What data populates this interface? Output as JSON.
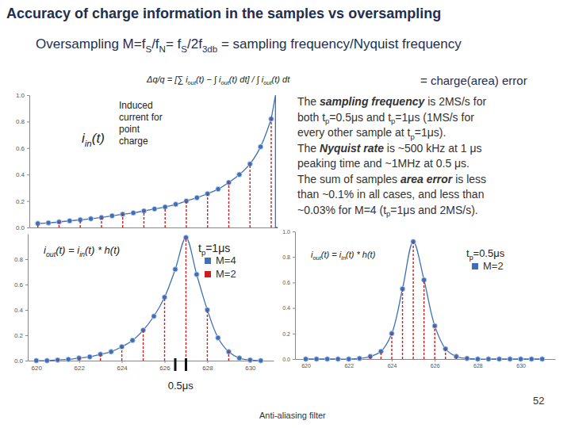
{
  "title": "Accuracy of charge information in the samples vs oversampling",
  "subtitle": [
    "Oversampling M=f",
    {
      "sub": "S"
    },
    "/f",
    {
      "sub": "N"
    },
    "= f",
    {
      "sub": "S"
    },
    "/2f",
    {
      "sub": "3db"
    },
    " = sampling frequency/Nyquist frequency"
  ],
  "formula": [
    "Δq/q = [∑ i",
    {
      "sub": "out"
    },
    "(t) − ∫ i",
    {
      "sub": "out"
    },
    "(t) dt] / ∫ i",
    {
      "sub": "out"
    },
    "(t) dt"
  ],
  "formula_note": "= charge(area) error",
  "notes": [
    [
      "The ",
      {
        "em": "sampling frequency"
      },
      " is 2MS/s for"
    ],
    [
      "both t",
      {
        "sub": "p"
      },
      "=0.5μs and t",
      {
        "sub": "p"
      },
      "=1μs  (1MS/s for"
    ],
    [
      "every other sample at t",
      {
        "sub": "p"
      },
      "=1μs)."
    ],
    [
      "The ",
      {
        "em": "Nyquist rate"
      },
      " is ~500 kHz at 1 μs"
    ],
    "peaking time and ~1MHz at 0.5 μs.",
    [
      "The sum of samples ",
      {
        "em": "area error"
      },
      " is less"
    ],
    "than ~0.1% in all cases, and less than",
    [
      "~0.03% for M=4 (t",
      {
        "sub": "p"
      },
      "=1μs and 2MS/s)."
    ]
  ],
  "page_number": "52",
  "footer": "Anti-aliasing filter",
  "chart_data": [
    {
      "type": "line",
      "xlim": [
        619.6,
        631.3
      ],
      "ylim": [
        0,
        1.0
      ],
      "yticks": [
        {
          "value": 0,
          "label": "0.0"
        },
        0.2,
        0.4,
        0.6,
        0.8,
        {
          "value": 1,
          "label": "1.0"
        }
      ],
      "tick_labels": "y",
      "annotations": [
        {
          "text": [
            "i",
            {
              "sub": "in"
            },
            "(t)"
          ]
        },
        {
          "text": "Induced"
        },
        {
          "text": "current for"
        },
        {
          "text": "point"
        },
        {
          "text": "charge"
        }
      ],
      "series": [
        {
          "type": "line",
          "marker": "circle",
          "color": "#3f6fb5",
          "x": [
            620,
            620.5,
            621,
            621.5,
            622,
            622.5,
            623,
            623.5,
            624,
            624.5,
            625,
            625.5,
            626,
            626.5,
            627,
            627.5,
            628,
            628.5,
            629,
            629.5,
            630,
            630.5,
            631
          ],
          "values": [
            0.03,
            0.035,
            0.042,
            0.05,
            0.058,
            0.066,
            0.075,
            0.088,
            0.1,
            0.11,
            0.125,
            0.14,
            0.155,
            0.175,
            0.2,
            0.225,
            0.255,
            0.29,
            0.34,
            0.4,
            0.48,
            0.61,
            0.82
          ]
        },
        {
          "type": "line",
          "color": "#3f6fb5",
          "x": [
            631,
            631.2,
            631.2,
            631.3
          ],
          "values": [
            0.82,
            1.0,
            0,
            0
          ]
        },
        {
          "type": "stem",
          "line_style": "dashed",
          "color": "#cc1f1f",
          "x": [
            620,
            621,
            622,
            623,
            624,
            625,
            626,
            627,
            628,
            629,
            630,
            631
          ],
          "values": [
            0.03,
            0.042,
            0.058,
            0.075,
            0.1,
            0.125,
            0.155,
            0.2,
            0.255,
            0.34,
            0.48,
            0.82
          ]
        }
      ]
    },
    {
      "type": "line",
      "xlim": [
        619.6,
        631.1
      ],
      "ylim": [
        0,
        1.0
      ],
      "xticks": [
        620,
        622,
        624,
        626,
        628,
        630
      ],
      "yticks": [
        {
          "value": 0,
          "label": "0.0"
        },
        0.2,
        0.4,
        0.6,
        0.8
      ],
      "legend": "upper right",
      "annotations": [
        {
          "text": [
            "i",
            {
              "sub": "out"
            },
            "(t) = i",
            {
              "sub": "in"
            },
            "(t) * h(t)"
          ]
        },
        {
          "text": [
            "t",
            {
              "sub": "p"
            },
            "=1μs"
          ]
        },
        {
          "text": "0.5μs",
          "x": [
            626.5,
            627
          ]
        }
      ],
      "series": [
        {
          "name": "M=4",
          "type": "line",
          "marker": "circle",
          "color": "#3f6fb5",
          "x": [
            620,
            620.5,
            621,
            621.5,
            622,
            622.5,
            623,
            623.5,
            624,
            624.5,
            625,
            625.5,
            626,
            626.5,
            627,
            627.5,
            628,
            628.5,
            629,
            629.5,
            630,
            630.5
          ],
          "values": [
            0,
            0,
            0.005,
            0.01,
            0.02,
            0.03,
            0.05,
            0.07,
            0.11,
            0.16,
            0.24,
            0.35,
            0.5,
            0.72,
            0.97,
            0.68,
            0.4,
            0.18,
            0.07,
            0.02,
            0.005,
            0
          ]
        },
        {
          "name": "M=2",
          "type": "stem",
          "line_style": "dashed",
          "color": "#cc1f1f",
          "x": [
            620,
            621,
            622,
            623,
            624,
            625,
            626,
            627,
            628,
            629,
            630
          ],
          "values": [
            0,
            0.005,
            0.02,
            0.05,
            0.11,
            0.24,
            0.5,
            0.97,
            0.4,
            0.07,
            0.005
          ]
        }
      ]
    },
    {
      "type": "line",
      "xlim": [
        619.5,
        631.6
      ],
      "ylim": [
        0,
        1.0
      ],
      "xticks": [
        620,
        622,
        624,
        626,
        628,
        630
      ],
      "yticks": [
        {
          "value": 0,
          "label": "0.0"
        },
        0.2,
        0.4,
        0.6,
        0.8,
        {
          "value": 1,
          "label": "1.0"
        }
      ],
      "legend": "upper right",
      "annotations": [
        {
          "text": [
            "i",
            {
              "sub": "out"
            },
            "(t) = i",
            {
              "sub": "in"
            },
            "(t) * h(t)"
          ]
        },
        {
          "text": [
            "t",
            {
              "sub": "p"
            },
            "=0.5μs"
          ]
        }
      ],
      "series": [
        {
          "name": "M=2",
          "type": "line",
          "marker": "circle",
          "color": "#3f6fb5",
          "x": [
            620,
            620.5,
            621,
            621.5,
            622,
            622.5,
            623,
            623.5,
            624,
            624.5,
            625,
            625.5,
            626,
            626.5,
            627,
            627.5,
            628,
            628.5,
            629,
            629.5,
            630,
            630.5,
            631
          ],
          "values": [
            0,
            0,
            0,
            0,
            0,
            0.005,
            0.02,
            0.06,
            0.2,
            0.55,
            0.92,
            0.62,
            0.26,
            0.08,
            0.02,
            0.005,
            0,
            0,
            0,
            0,
            0,
            0,
            0
          ]
        },
        {
          "type": "stem",
          "line_style": "dashed",
          "color": "#cc1f1f",
          "x": [
            620,
            620.5,
            621,
            621.5,
            622,
            622.5,
            623,
            623.5,
            624,
            624.5,
            625,
            625.5,
            626,
            626.5,
            627,
            627.5,
            628,
            628.5,
            629,
            629.5,
            630,
            630.5,
            631
          ],
          "values": [
            0,
            0,
            0,
            0,
            0,
            0.005,
            0.02,
            0.06,
            0.2,
            0.55,
            0.92,
            0.62,
            0.26,
            0.08,
            0.02,
            0.005,
            0,
            0,
            0,
            0,
            0,
            0,
            0
          ]
        }
      ]
    }
  ]
}
